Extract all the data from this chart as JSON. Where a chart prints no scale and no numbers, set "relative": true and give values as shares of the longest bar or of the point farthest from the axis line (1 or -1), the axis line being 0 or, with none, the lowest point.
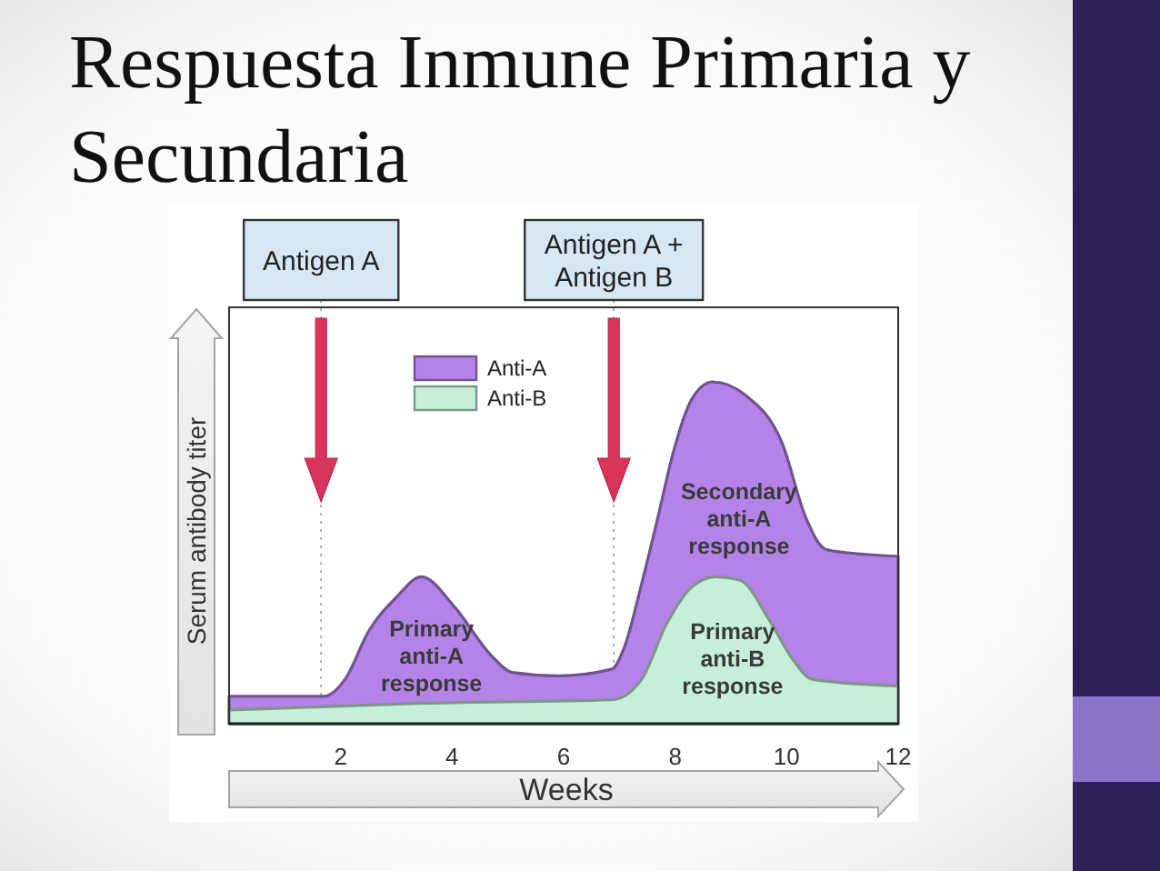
{
  "chart_data": {
    "type": "area",
    "title": "Respuesta Inmune Primaria y Secundaria",
    "xlabel": "Weeks",
    "ylabel": "Serum antibody titer",
    "relative": true,
    "xlim": [
      0,
      12
    ],
    "xticks": [
      2,
      4,
      6,
      8,
      10,
      12
    ],
    "legend": "top left",
    "series": [
      {
        "name": "Anti-A",
        "color": "#b483e8",
        "x": [
          0,
          1.7,
          2.08,
          2.5,
          3.0,
          3.45,
          4.05,
          4.7,
          5.08,
          5.9,
          6.87,
          7.08,
          7.4,
          7.7,
          7.96,
          8.3,
          8.67,
          9.27,
          9.92,
          10.35,
          10.7,
          11.1,
          12
        ],
        "values": [
          0.08,
          0.08,
          0.13,
          0.27,
          0.37,
          0.43,
          0.34,
          0.2,
          0.15,
          0.14,
          0.16,
          0.22,
          0.41,
          0.61,
          0.79,
          0.95,
          1.0,
          0.96,
          0.82,
          0.6,
          0.51,
          0.5,
          0.49
        ]
      },
      {
        "name": "Anti-B",
        "color": "#c6efd9",
        "x": [
          0,
          3.5,
          6.87,
          7.4,
          7.84,
          8.3,
          8.73,
          9.16,
          9.7,
          10.1,
          10.46,
          12
        ],
        "values": [
          0.04,
          0.06,
          0.07,
          0.13,
          0.29,
          0.4,
          0.43,
          0.42,
          0.3,
          0.19,
          0.13,
          0.11
        ]
      }
    ],
    "ref_lines": [
      {
        "axis": "x",
        "value": 1.65,
        "label": "Antigen A",
        "line_style": "dotted"
      },
      {
        "axis": "x",
        "value": 6.9,
        "label": "Antigen A + Antigen B",
        "line_style": "dotted"
      }
    ],
    "annotations": [
      {
        "text": "Primary anti-A response",
        "x": 4.7,
        "y": 0.2
      },
      {
        "text": "Secondary anti-A response",
        "x": 10.35,
        "y": 0.6
      },
      {
        "text": "Primary anti-B response",
        "x": 10.1,
        "y": 0.19
      }
    ]
  }
}
